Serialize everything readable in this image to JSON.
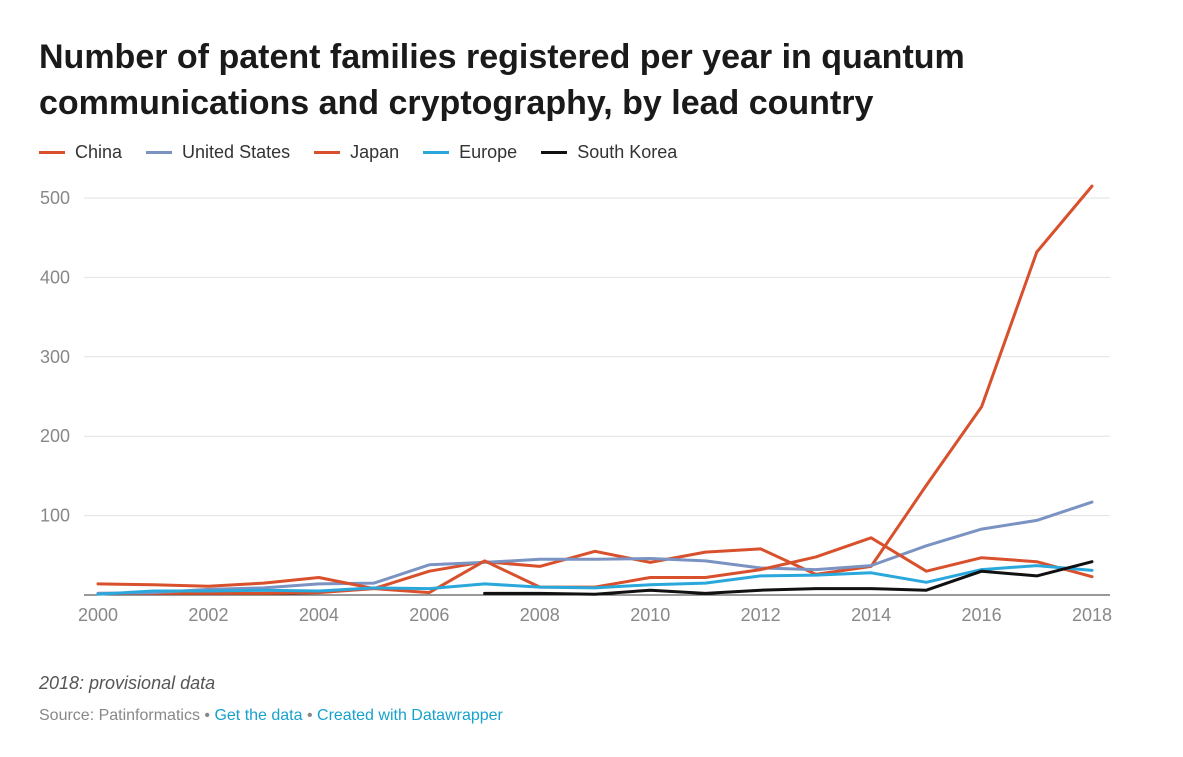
{
  "chart_data": {
    "type": "line",
    "title": "Number of patent families registered per year in quantum communications and cryptography, by lead country",
    "x": [
      2000,
      2001,
      2002,
      2003,
      2004,
      2005,
      2006,
      2007,
      2008,
      2009,
      2010,
      2011,
      2012,
      2013,
      2014,
      2015,
      2016,
      2017,
      2018
    ],
    "x_ticks": [
      2000,
      2002,
      2004,
      2006,
      2008,
      2010,
      2012,
      2014,
      2016,
      2018
    ],
    "y_ticks": [
      100,
      200,
      300,
      400,
      500
    ],
    "ylim": [
      0,
      520
    ],
    "xlim": [
      2000,
      2018
    ],
    "grid": true,
    "legend_position": "top-left",
    "series": [
      {
        "name": "China",
        "color": "#d8502c",
        "values": [
          2,
          2,
          2,
          2,
          3,
          8,
          30,
          42,
          36,
          55,
          41,
          54,
          58,
          26,
          36,
          138,
          237,
          432,
          515
        ]
      },
      {
        "name": "United States",
        "color": "#7a93c2",
        "values": [
          2,
          3,
          7,
          9,
          14,
          15,
          38,
          41,
          45,
          45,
          46,
          43,
          34,
          32,
          37,
          62,
          83,
          94,
          117
        ]
      },
      {
        "name": "Japan",
        "color": "#d8502c",
        "values": [
          14,
          13,
          11,
          15,
          22,
          8,
          3,
          43,
          10,
          10,
          22,
          22,
          32,
          48,
          72,
          30,
          47,
          42,
          23
        ]
      },
      {
        "name": "Europe",
        "color": "#2aa8dc",
        "values": [
          1,
          5,
          5,
          6,
          5,
          9,
          8,
          14,
          10,
          9,
          13,
          15,
          24,
          25,
          28,
          16,
          32,
          37,
          31
        ]
      },
      {
        "name": "South Korea",
        "color": "#111111",
        "values": [
          null,
          null,
          null,
          null,
          null,
          null,
          null,
          2,
          2,
          1,
          6,
          2,
          6,
          8,
          8,
          6,
          30,
          24,
          42
        ]
      }
    ]
  },
  "note": "2018: provisional data",
  "source": {
    "prefix": "Source: Patinformatics",
    "separator": " • ",
    "get_data": "Get the data",
    "created_with": "Created with Datawrapper"
  }
}
